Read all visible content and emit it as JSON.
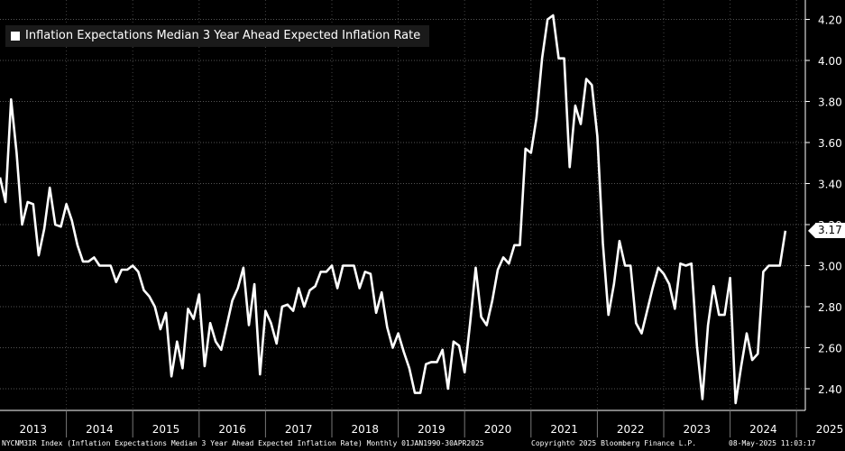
{
  "chart_data": {
    "type": "line",
    "legend": "Inflation Expectations Median 3 Year Ahead Expected Inflation Rate",
    "legend_position": "top-left",
    "ylim": [
      2.3,
      4.26
    ],
    "y_ticks": [
      "2.40",
      "2.60",
      "2.80",
      "3.00",
      "3.20",
      "3.40",
      "3.60",
      "3.80",
      "4.00",
      "4.20"
    ],
    "x_ticks": [
      "2013",
      "2014",
      "2015",
      "2016",
      "2017",
      "2018",
      "2019",
      "2020",
      "2021",
      "2022",
      "2023",
      "2024",
      "2025"
    ],
    "x_start": "2013-01",
    "grid": true,
    "last_value_label": "3.17",
    "series": [
      {
        "color": "#ffffff",
        "values": [
          3.43,
          3.31,
          3.81,
          3.55,
          3.2,
          3.31,
          3.3,
          3.05,
          3.18,
          3.38,
          3.2,
          3.19,
          3.3,
          3.22,
          3.1,
          3.02,
          3.02,
          3.04,
          3.0,
          3.0,
          3.0,
          2.92,
          2.98,
          2.98,
          3.0,
          2.97,
          2.88,
          2.85,
          2.8,
          2.69,
          2.77,
          2.46,
          2.63,
          2.5,
          2.79,
          2.74,
          2.86,
          2.51,
          2.72,
          2.63,
          2.59,
          2.71,
          2.83,
          2.89,
          2.99,
          2.71,
          2.91,
          2.47,
          2.78,
          2.72,
          2.62,
          2.8,
          2.81,
          2.78,
          2.89,
          2.8,
          2.88,
          2.9,
          2.97,
          2.97,
          3.0,
          2.89,
          3.0,
          3.0,
          3.0,
          2.89,
          2.97,
          2.96,
          2.77,
          2.87,
          2.7,
          2.6,
          2.67,
          2.58,
          2.5,
          2.38,
          2.38,
          2.52,
          2.53,
          2.53,
          2.59,
          2.4,
          2.63,
          2.61,
          2.48,
          2.72,
          2.99,
          2.75,
          2.71,
          2.83,
          2.98,
          3.04,
          3.01,
          3.1,
          3.1,
          3.57,
          3.55,
          3.72,
          4.01,
          4.2,
          4.22,
          4.01,
          4.01,
          3.48,
          3.78,
          3.69,
          3.91,
          3.88,
          3.63,
          3.11,
          2.76,
          2.91,
          3.12,
          3.0,
          3.0,
          2.72,
          2.67,
          2.78,
          2.89,
          2.99,
          2.96,
          2.91,
          2.79,
          3.01,
          3.0,
          3.01,
          2.61,
          2.35,
          2.71,
          2.9,
          2.76,
          2.76,
          2.94,
          2.33,
          2.51,
          2.67,
          2.54,
          2.57,
          2.97,
          3.0,
          3.0,
          3.0,
          3.17
        ]
      }
    ]
  },
  "footer": {
    "left": "NYCNM3IR Index (Inflation Expectations Median 3 Year Ahead Expected Inflation Rate)  Monthly 01JAN1990-30APR2025",
    "middle": "Copyright© 2025 Bloomberg Finance L.P.",
    "right": "08-May-2025 11:03:17"
  }
}
